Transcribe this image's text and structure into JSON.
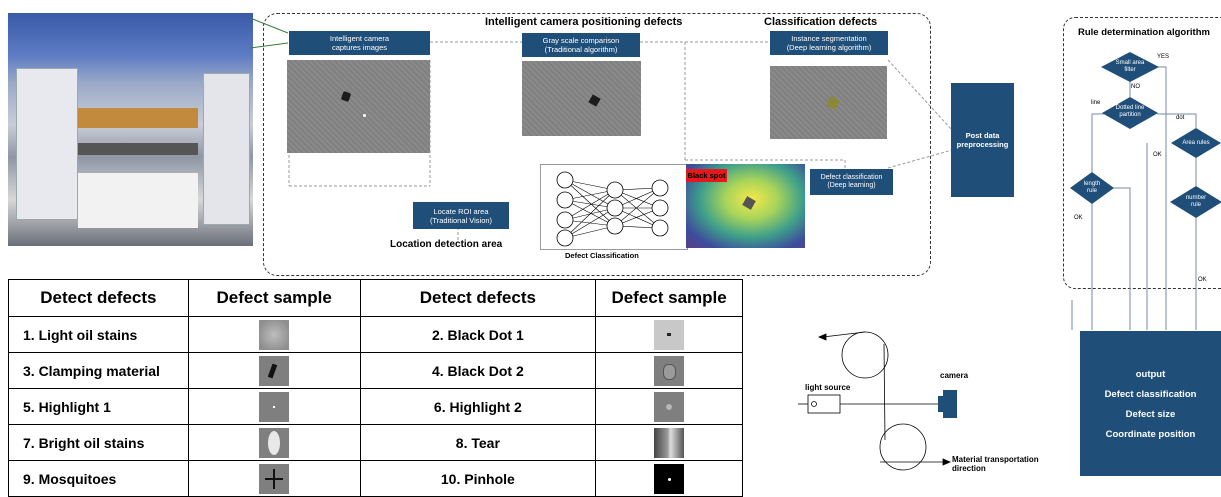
{
  "pipeline": {
    "positioning_title": "Intelligent camera positioning defects",
    "classification_title": "Classification defects",
    "capture_label": "Intelligent camera\ncaptures images",
    "gray_label": "Gray scale comparison\n(Traditional algorithm)",
    "instance_label": "Instance segmentation\n(Deep learning algorithm)",
    "roi_label": "Locate ROI area\n(Traditional Vision)",
    "location_area_label": "Location detection area",
    "defect_class_label": "Defect classification\n(Deep learning)",
    "black_spot_label": "Black spot",
    "defect_classification_caption": "Defect Classification",
    "post_label": "Post data\npreprocessing"
  },
  "rule": {
    "title": "Rule determination algorithm",
    "small_area": "Small area\nfilter",
    "yes": "YES",
    "no": "NO",
    "line": "line",
    "dotted": "Dotted line\npartition",
    "dot": "dot",
    "area_rules": "Area rules",
    "ok": "OK",
    "length_rule": "length\nrule",
    "number_rule": "number\nrule"
  },
  "output": {
    "title": "output",
    "item1": "Defect classification",
    "item2": "Defect size",
    "item3": "Coordinate position"
  },
  "device": {
    "light_source": "light source",
    "camera": "camera",
    "transport": "Material transportation\ndirection"
  },
  "table": {
    "headers": [
      "Detect defects",
      "Defect sample",
      "Detect defects",
      "Defect sample"
    ],
    "rows": [
      [
        "1. Light oil stains",
        "2. Black Dot 1"
      ],
      [
        "3. Clamping material",
        "4. Black Dot 2"
      ],
      [
        "5. Highlight 1",
        "6. Highlight 2"
      ],
      [
        "7. Bright oil stains",
        "8. Tear"
      ],
      [
        "9. Mosquitoes",
        "10. Pinhole"
      ]
    ]
  },
  "colors": {
    "panel_blue": "#1f4e79",
    "red_label": "#e3191b"
  }
}
